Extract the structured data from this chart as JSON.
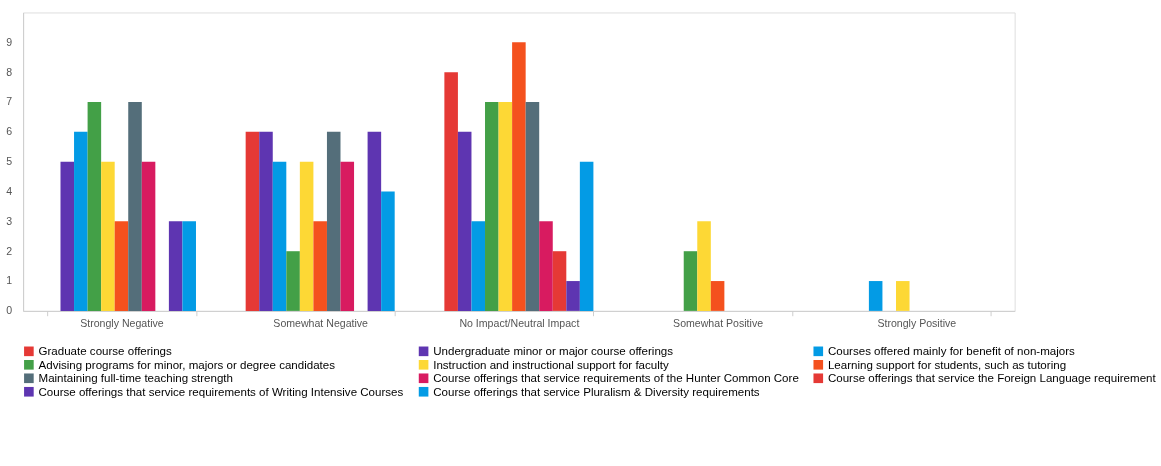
{
  "chart_data": {
    "type": "bar",
    "categories": [
      "Strongly Negative",
      "Somewhat Negative",
      "No Impact/Neutral Impact",
      "Somewhat Positive",
      "Strongly Positive"
    ],
    "ylim": [
      0,
      10
    ],
    "yticks": [
      0,
      1,
      2,
      3,
      4,
      5,
      6,
      7,
      8,
      9
    ],
    "grid": false,
    "legend": "bottom",
    "series": [
      {
        "name": "Graduate course offerings",
        "color": "#e53935",
        "values": [
          null,
          6,
          8,
          null,
          null
        ]
      },
      {
        "name": "Undergraduate minor or major course offerings",
        "color": "#5e35b1",
        "values": [
          5,
          6,
          6,
          null,
          null
        ]
      },
      {
        "name": "Courses offered mainly for benefit of non-majors",
        "color": "#039be5",
        "values": [
          6,
          5,
          3,
          null,
          1
        ]
      },
      {
        "name": "Advising programs for minor, majors or degree candidates",
        "color": "#43a047",
        "values": [
          7,
          2,
          7,
          2,
          null
        ]
      },
      {
        "name": "Instruction and instructional support for faculty",
        "color": "#fdd835",
        "values": [
          5,
          5,
          7,
          3,
          1
        ]
      },
      {
        "name": "Learning support for students, such as tutoring",
        "color": "#f4511e",
        "values": [
          3,
          3,
          9,
          1,
          null
        ]
      },
      {
        "name": "Maintaining full-time teaching strength",
        "color": "#546e7a",
        "values": [
          7,
          6,
          7,
          null,
          null
        ]
      },
      {
        "name": "Course offerings that service requirements of the Hunter Common Core",
        "color": "#d81b60",
        "values": [
          5,
          5,
          3,
          null,
          null
        ]
      },
      {
        "name": "Course offerings that service the Foreign Language requirement",
        "color": "#e53935",
        "values": [
          null,
          null,
          2,
          null,
          null
        ]
      },
      {
        "name": "Course offerings that service requirements of Writing Intensive Courses",
        "color": "#5e35b1",
        "values": [
          3,
          6,
          1,
          null,
          null
        ]
      },
      {
        "name": "Course offerings that service Pluralism & Diversity requirements",
        "color": "#039be5",
        "values": [
          3,
          4,
          5,
          null,
          null
        ]
      }
    ]
  }
}
